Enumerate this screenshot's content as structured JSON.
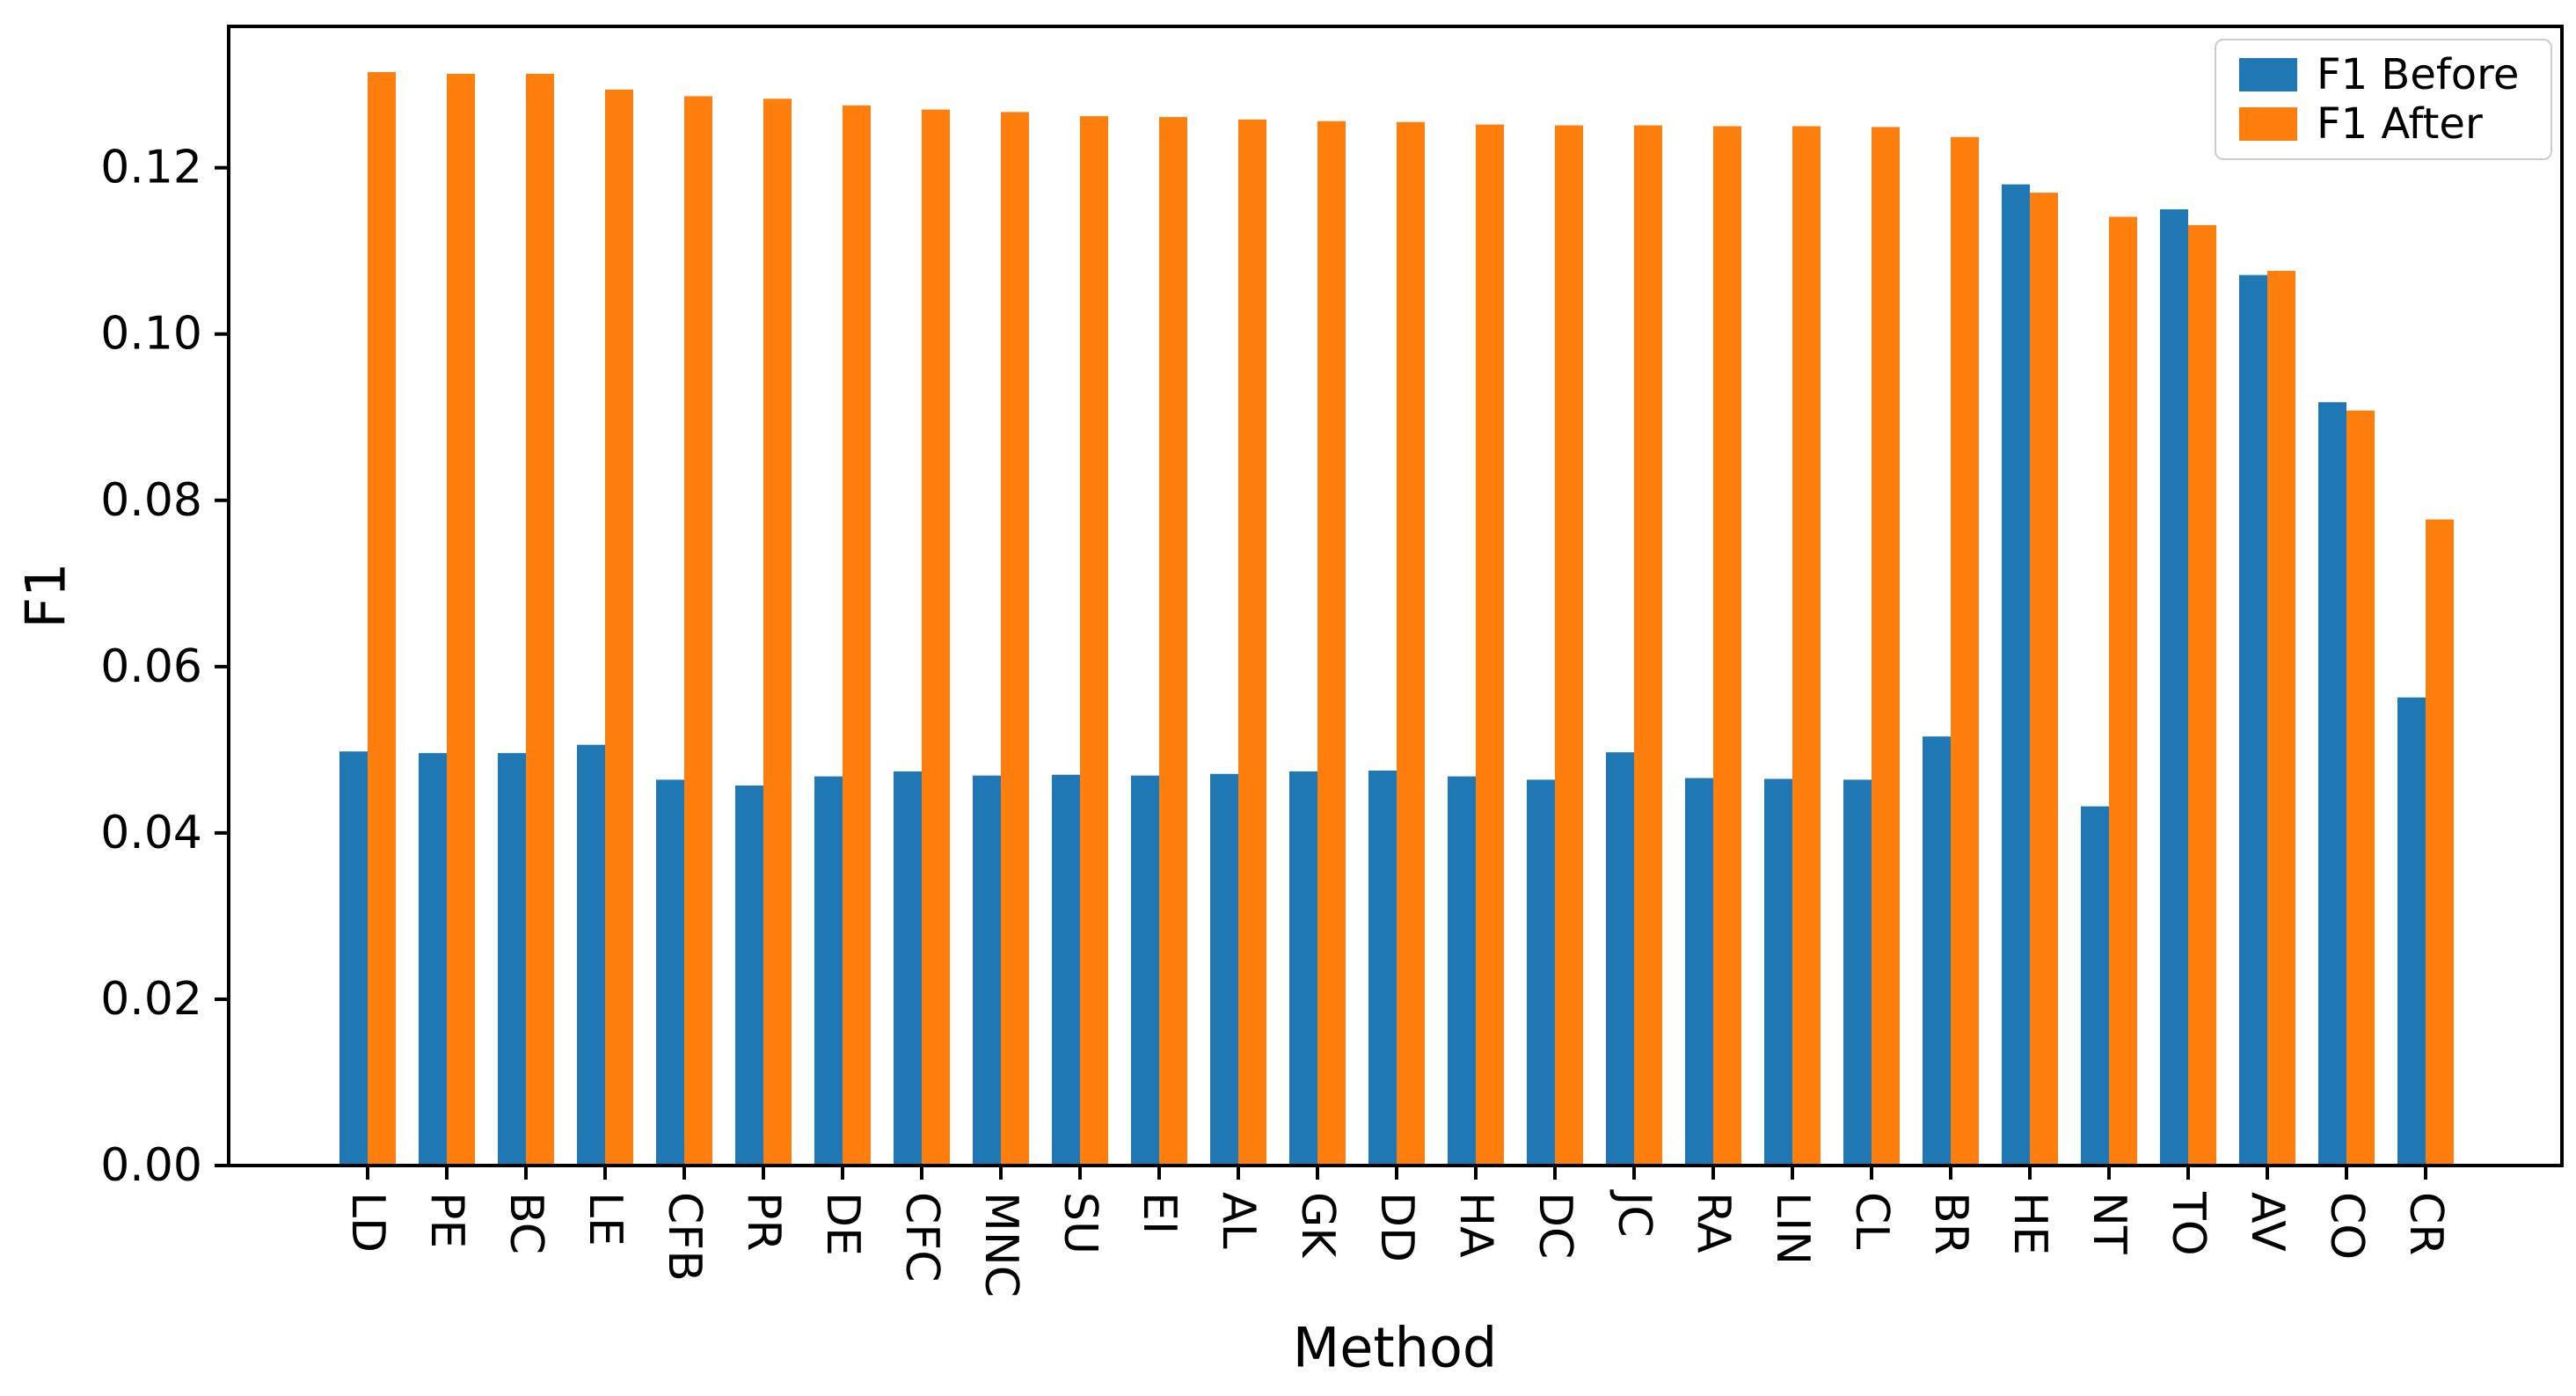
{
  "chart_data": {
    "type": "bar",
    "title": "",
    "xlabel": "Method",
    "ylabel": "F1",
    "categories": [
      "LD",
      "PE",
      "BC",
      "LE",
      "CFB",
      "PR",
      "DE",
      "CFC",
      "MNC",
      "SU",
      "EI",
      "AL",
      "GK",
      "DD",
      "HA",
      "DC",
      "JC",
      "RA",
      "LIN",
      "CL",
      "BR",
      "HE",
      "NT",
      "TO",
      "AV",
      "CO",
      "CR"
    ],
    "series": [
      {
        "name": "F1 Before",
        "color": "#1f77b4",
        "values": [
          0.0498,
          0.0496,
          0.0496,
          0.0506,
          0.0464,
          0.0457,
          0.0468,
          0.0474,
          0.0469,
          0.047,
          0.0469,
          0.0471,
          0.0474,
          0.0475,
          0.0468,
          0.0464,
          0.0497,
          0.0466,
          0.0465,
          0.0464,
          0.0516,
          0.118,
          0.0432,
          0.115,
          0.1071,
          0.0918,
          0.0563
        ]
      },
      {
        "name": "F1 After",
        "color": "#ff7f0e",
        "values": [
          0.1315,
          0.1313,
          0.1313,
          0.1294,
          0.1286,
          0.1283,
          0.1275,
          0.127,
          0.1267,
          0.1262,
          0.1261,
          0.1258,
          0.1256,
          0.1255,
          0.1252,
          0.1251,
          0.1251,
          0.125,
          0.125,
          0.1249,
          0.1237,
          0.117,
          0.1141,
          0.1131,
          0.1076,
          0.0908,
          0.0777
        ]
      }
    ],
    "ylim": [
      0,
      0.137
    ],
    "yticks": [
      0.0,
      0.02,
      0.04,
      0.06,
      0.08,
      0.1,
      0.12
    ],
    "ytick_labels": [
      "0.00",
      "0.02",
      "0.04",
      "0.06",
      "0.08",
      "0.10",
      "0.12"
    ],
    "grid": false,
    "legend": {
      "position": "upper right"
    },
    "axis_color": "#000000",
    "tick_label_rotation_x_deg": 90
  }
}
